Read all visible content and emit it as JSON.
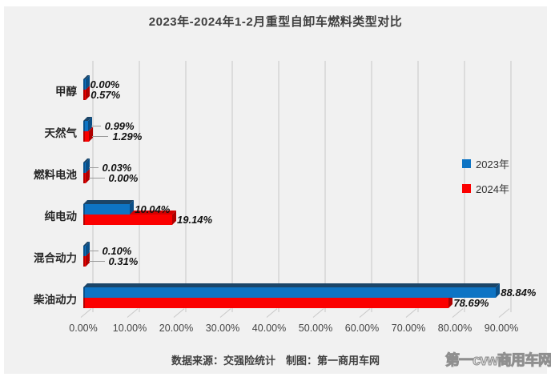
{
  "title": "2023年-2024年1-2月重型自卸车燃料类型对比",
  "legend": [
    {
      "label": "2023年",
      "color": "#0e74c4"
    },
    {
      "label": "2024年",
      "color": "#fb0000"
    }
  ],
  "footer": {
    "caption": "数据来源：交强险统计　制图：第一商用车网",
    "watermark": "第一cvw商用车网"
  },
  "colors": {
    "panel_background": "#f1f1f1",
    "gridline": "#dcdcdc",
    "blue_front": "#0e74c4",
    "blue_top": "#1b4568",
    "red_front": "#fb0000",
    "red_top": "#d40000",
    "label_text": "#111111",
    "title_text": "#3f3f3f"
  },
  "chart_data": {
    "type": "bar",
    "orientation": "horizontal",
    "title": "2023年-2024年1-2月重型自卸车燃料类型对比",
    "categories": [
      "甲醇",
      "天然气",
      "燃料电池",
      "纯电动",
      "混合动力",
      "柴油动力"
    ],
    "series": [
      {
        "name": "2023年",
        "color": "#0e74c4",
        "values": [
          0.0,
          0.99,
          0.03,
          10.04,
          0.1,
          88.84
        ]
      },
      {
        "name": "2024年",
        "color": "#fb0000",
        "values": [
          0.57,
          1.29,
          0.0,
          19.14,
          0.31,
          78.69
        ]
      }
    ],
    "data_labels": {
      "2023年": [
        "0.00%",
        "0.99%",
        "0.03%",
        "10.04%",
        "0.10%",
        "88.84%"
      ],
      "2024年": [
        "0.57%",
        "1.29%",
        "0.00%",
        "19.14%",
        "0.31%",
        "78.69%"
      ]
    },
    "xlabel": "",
    "ylabel": "",
    "xlim": [
      0,
      90
    ],
    "x_ticks": [
      "0.00%",
      "10.00%",
      "20.00%",
      "30.00%",
      "40.00%",
      "50.00%",
      "60.00%",
      "70.00%",
      "80.00%",
      "90.00%"
    ],
    "value_suffix": "%",
    "value_decimals": 2,
    "grid": "vertical",
    "legend_position": "right-inside",
    "style": "3d-bar"
  }
}
